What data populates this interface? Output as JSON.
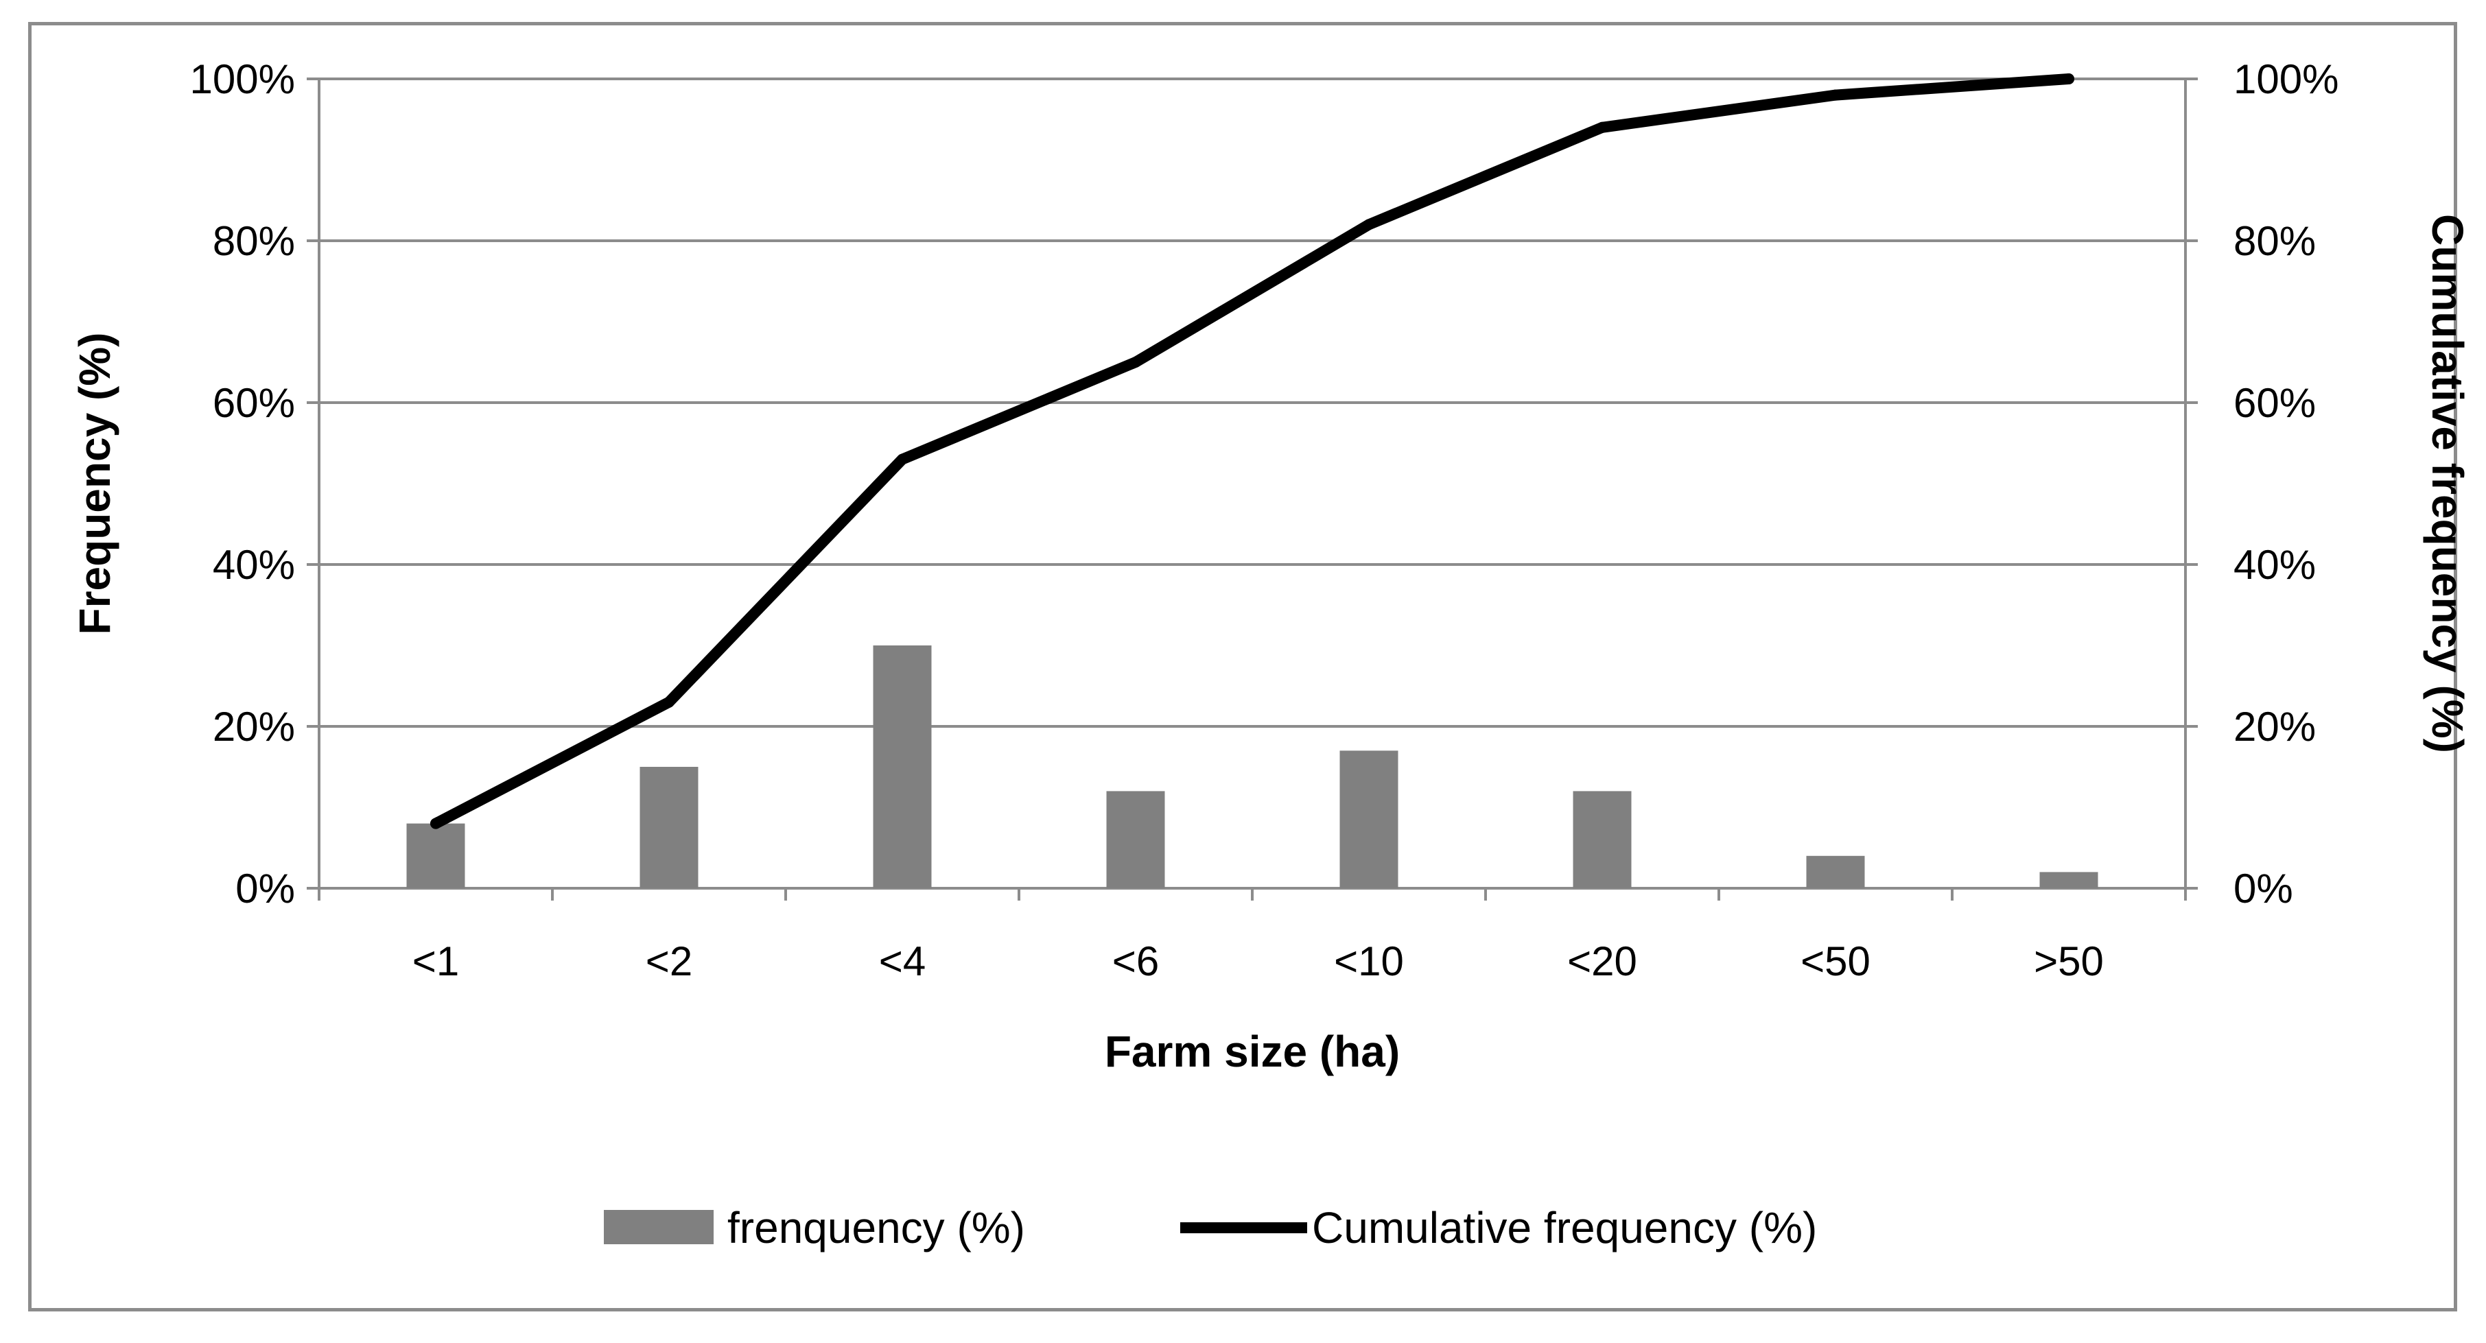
{
  "chart_data": {
    "type": "bar",
    "categories": [
      "<1",
      "<2",
      "<4",
      "<6",
      "<10",
      "<20",
      "<50",
      ">50"
    ],
    "series": [
      {
        "name": "frenquency (%)",
        "type": "bar",
        "axis": "left",
        "color": "#808080",
        "values": [
          8,
          15,
          30,
          12,
          17,
          12,
          4,
          2
        ]
      },
      {
        "name": "Cumulative frequency (%)",
        "type": "line",
        "axis": "right",
        "color": "#000000",
        "values": [
          8,
          23,
          53,
          65,
          82,
          94,
          98,
          100
        ]
      }
    ],
    "xlabel": "Farm size (ha)",
    "ylabel": "Frequency (%)",
    "y2label": "Cumulative frequency (%)",
    "ylim": [
      0,
      100
    ],
    "y2lim": [
      0,
      100
    ],
    "yticks": [
      "0%",
      "20%",
      "40%",
      "60%",
      "80%",
      "100%"
    ],
    "y2ticks": [
      "0%",
      "20%",
      "40%",
      "60%",
      "80%",
      "100%"
    ],
    "grid": true,
    "legend_position": "bottom"
  }
}
